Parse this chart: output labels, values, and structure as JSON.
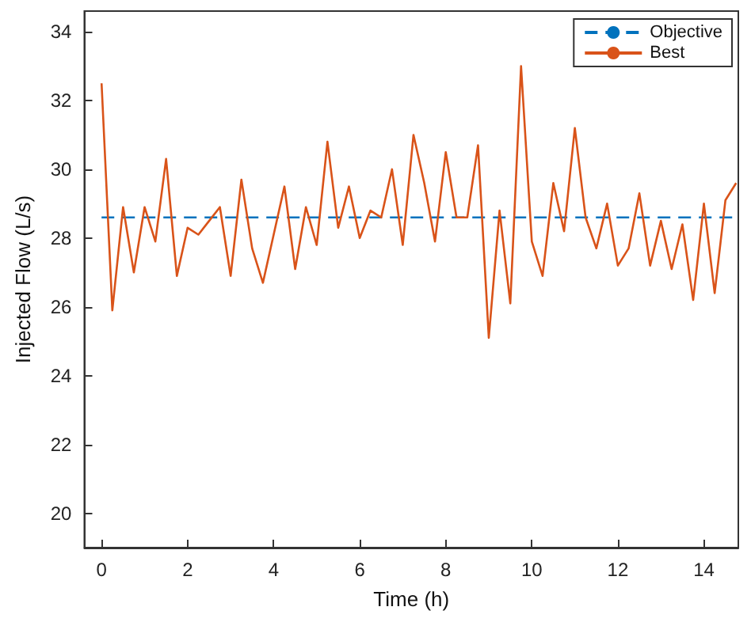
{
  "chart_data": {
    "type": "line",
    "xlabel": "Time (h)",
    "ylabel": "Injected Flow (L/s)",
    "xlim": [
      -0.4,
      14.8
    ],
    "xticks": [
      0,
      2,
      4,
      6,
      8,
      10,
      12,
      14
    ],
    "ylim": [
      19,
      34.6
    ],
    "yticks": [
      20,
      22,
      24,
      26,
      28,
      30,
      32,
      34
    ],
    "grid": false,
    "legend": "top right",
    "marker": "none",
    "series": [
      {
        "name": "Objective",
        "color": "#0072bd",
        "line_style": "dashed",
        "x": [
          0,
          14.75
        ],
        "values": [
          28.6,
          28.6
        ]
      },
      {
        "name": "Best",
        "color": "#d95319",
        "line_style": "solid",
        "x": [
          0,
          0.25,
          0.5,
          0.75,
          1,
          1.25,
          1.5,
          1.75,
          2,
          2.25,
          2.5,
          2.75,
          3,
          3.25,
          3.5,
          3.75,
          4,
          4.25,
          4.5,
          4.75,
          5,
          5.25,
          5.5,
          5.75,
          6,
          6.25,
          6.5,
          6.75,
          7,
          7.25,
          7.5,
          7.75,
          8,
          8.25,
          8.5,
          8.75,
          9,
          9.25,
          9.5,
          9.75,
          10,
          10.25,
          10.5,
          10.75,
          11,
          11.25,
          11.5,
          11.75,
          12,
          12.25,
          12.5,
          12.75,
          13,
          13.25,
          13.5,
          13.75,
          14,
          14.25,
          14.5,
          14.75
        ],
        "values": [
          32.5,
          25.9,
          28.9,
          27.0,
          28.9,
          27.9,
          30.3,
          26.9,
          28.3,
          28.1,
          28.5,
          28.9,
          26.9,
          29.7,
          27.7,
          26.7,
          28.1,
          29.5,
          27.1,
          28.9,
          27.8,
          30.8,
          28.3,
          29.5,
          28.0,
          28.8,
          28.6,
          30.0,
          27.8,
          31.0,
          29.6,
          27.9,
          30.5,
          28.6,
          28.6,
          30.7,
          25.1,
          28.8,
          26.1,
          33.0,
          27.9,
          26.9,
          29.6,
          28.2,
          31.2,
          28.6,
          27.7,
          29.0,
          27.2,
          27.7,
          29.3,
          27.2,
          28.5,
          27.1,
          28.4,
          26.2,
          29.0,
          26.4,
          29.1,
          29.6
        ]
      }
    ]
  }
}
